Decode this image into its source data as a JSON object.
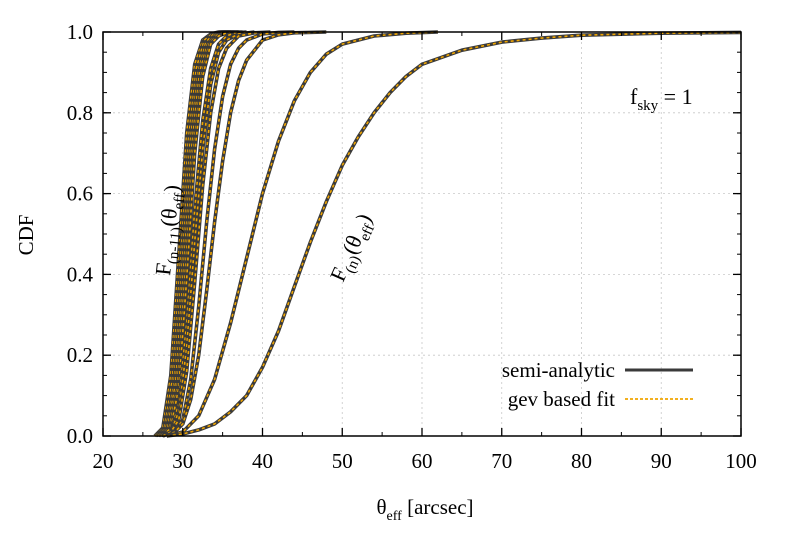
{
  "chart_data": {
    "type": "line",
    "xlabel": {
      "base": "θ",
      "sub": "eff",
      "rest": " [arcsec]"
    },
    "ylabel": "CDF",
    "xlim": [
      20,
      100
    ],
    "ylim": [
      0,
      1
    ],
    "xticks": [
      "20",
      "30",
      "40",
      "50",
      "60",
      "70",
      "80",
      "90",
      "100"
    ],
    "yticks": [
      "0.0",
      "0.2",
      "0.4",
      "0.6",
      "0.8",
      "1.0"
    ],
    "grid": true,
    "legend": {
      "placement": "bottom-right",
      "entries": [
        {
          "label": "semi-analytic",
          "color": "#3a3a3a",
          "style": "solid"
        },
        {
          "label": "gev based fit",
          "color": "#f0a500",
          "style": "dashed"
        }
      ]
    },
    "annotations": {
      "fsky": {
        "base": "f",
        "sub": "sky",
        "rest": " = 1"
      },
      "left_curve_label": {
        "pre": "F",
        "sub": "(n-11)",
        "paren": "(θ",
        "sub2": "eff",
        "close": ")"
      },
      "right_curve_label": {
        "pre": "F",
        "sub": "(n)",
        "paren": "(θ",
        "sub2": "eff",
        "close": ")"
      }
    },
    "series": [
      {
        "x": [
          26.5,
          27.5,
          28.5,
          29.5,
          30.5,
          31.5,
          32.5,
          33.5,
          34.5,
          36
        ],
        "y": [
          0,
          0.02,
          0.15,
          0.45,
          0.75,
          0.92,
          0.98,
          0.995,
          1.0,
          1.0
        ]
      },
      {
        "x": [
          26.7,
          27.7,
          28.7,
          29.7,
          30.7,
          31.7,
          32.7,
          33.7,
          34.7,
          36
        ],
        "y": [
          0,
          0.02,
          0.14,
          0.43,
          0.73,
          0.91,
          0.98,
          0.995,
          1.0,
          1.0
        ]
      },
      {
        "x": [
          26.9,
          27.9,
          28.9,
          29.9,
          30.9,
          31.9,
          32.9,
          33.9,
          34.9,
          36.5
        ],
        "y": [
          0,
          0.02,
          0.13,
          0.42,
          0.72,
          0.9,
          0.975,
          0.995,
          1.0,
          1.0
        ]
      },
      {
        "x": [
          27.1,
          28.1,
          29.1,
          30.1,
          31.1,
          32.1,
          33.1,
          34.1,
          35.1,
          37
        ],
        "y": [
          0,
          0.02,
          0.13,
          0.41,
          0.71,
          0.9,
          0.97,
          0.993,
          1.0,
          1.0
        ]
      },
      {
        "x": [
          27.3,
          28.3,
          29.3,
          30.3,
          31.3,
          32.3,
          33.3,
          34.3,
          35.3,
          37.5
        ],
        "y": [
          0,
          0.02,
          0.12,
          0.4,
          0.7,
          0.89,
          0.97,
          0.992,
          1.0,
          1.0
        ]
      },
      {
        "x": [
          27.5,
          28.5,
          29.5,
          30.5,
          31.5,
          32.5,
          33.5,
          34.5,
          35.5,
          37
        ],
        "y": [
          0,
          0.02,
          0.12,
          0.39,
          0.7,
          0.89,
          0.97,
          0.99,
          0.998,
          1.0
        ]
      },
      {
        "x": [
          27.5,
          28.5,
          29.5,
          30.5,
          31.5,
          32.5,
          33.5,
          34.5,
          35.5,
          36.5,
          38
        ],
        "y": [
          0,
          0.01,
          0.08,
          0.28,
          0.56,
          0.78,
          0.91,
          0.97,
          0.99,
          0.998,
          1.0
        ]
      },
      {
        "x": [
          27.5,
          28.5,
          29.5,
          30.5,
          31.5,
          32.5,
          33.5,
          34.5,
          35.5,
          37,
          39
        ],
        "y": [
          0,
          0.01,
          0.06,
          0.22,
          0.48,
          0.71,
          0.87,
          0.95,
          0.98,
          0.995,
          1.0
        ]
      },
      {
        "x": [
          27.5,
          28.5,
          29.5,
          30.5,
          31.5,
          32.5,
          33.5,
          34.5,
          35.5,
          37,
          39,
          41
        ],
        "y": [
          0,
          0.01,
          0.04,
          0.16,
          0.38,
          0.62,
          0.8,
          0.91,
          0.96,
          0.99,
          0.998,
          1.0
        ]
      },
      {
        "x": [
          28,
          29,
          30,
          31,
          32,
          33,
          34,
          35,
          36,
          37,
          38,
          40,
          42,
          44
        ],
        "y": [
          0,
          0.01,
          0.04,
          0.14,
          0.32,
          0.53,
          0.71,
          0.84,
          0.92,
          0.96,
          0.98,
          0.995,
          0.999,
          1.0
        ]
      },
      {
        "x": [
          28,
          29,
          30,
          31,
          32,
          33,
          34,
          35,
          36,
          37,
          38,
          40,
          42,
          44,
          48
        ],
        "y": [
          0,
          0.01,
          0.03,
          0.09,
          0.2,
          0.36,
          0.53,
          0.68,
          0.8,
          0.88,
          0.93,
          0.98,
          0.993,
          0.998,
          1.0
        ]
      },
      {
        "x": [
          28,
          30,
          32,
          34,
          36,
          38,
          40,
          42,
          44,
          46,
          48,
          50,
          54,
          58,
          62
        ],
        "y": [
          0,
          0.01,
          0.05,
          0.14,
          0.28,
          0.44,
          0.6,
          0.73,
          0.83,
          0.9,
          0.945,
          0.97,
          0.99,
          0.997,
          1.0
        ]
      },
      {
        "x": [
          28,
          30,
          32,
          34,
          36,
          38,
          40,
          42,
          44,
          46,
          48,
          50,
          52,
          54,
          56,
          58,
          60,
          65,
          70,
          75,
          80,
          90,
          100
        ],
        "y": [
          0,
          0.005,
          0.015,
          0.03,
          0.06,
          0.1,
          0.17,
          0.26,
          0.37,
          0.48,
          0.58,
          0.67,
          0.74,
          0.8,
          0.85,
          0.89,
          0.92,
          0.955,
          0.975,
          0.985,
          0.992,
          0.997,
          0.999
        ]
      }
    ]
  }
}
